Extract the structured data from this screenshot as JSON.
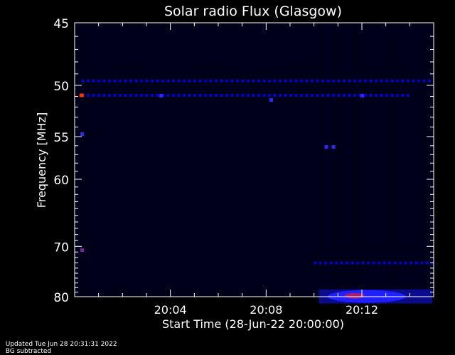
{
  "chart_data": {
    "type": "heatmap",
    "title": "Solar radio Flux (Glasgow)",
    "xlabel": "Start Time (28-Jun-22 20:00:00)",
    "ylabel": "Frequency [MHz]",
    "y_ticks": [
      45,
      50,
      55,
      60,
      70,
      80
    ],
    "ylim": [
      45,
      80
    ],
    "y_scale": "reciprocal",
    "x_ticks": [
      "20:04",
      "20:08",
      "20:12"
    ],
    "xlim_minutes": [
      0,
      15
    ],
    "x_tick_minutes": [
      4,
      8,
      12
    ],
    "colors": {
      "background": "#000000",
      "low": "#000033",
      "mid": "#0000ff",
      "high": "#ff3300"
    },
    "features": [
      {
        "name": "persistent-band",
        "freq_mhz": 49.6,
        "t_start": 0.3,
        "t_end": 15,
        "intensity": "mid",
        "dashed": true
      },
      {
        "name": "persistent-band",
        "freq_mhz": 50.9,
        "t_start": 0.3,
        "t_end": 14,
        "intensity": "mid",
        "dashed": true
      },
      {
        "name": "burst-start",
        "freq_mhz": 50.9,
        "t_start": 0.2,
        "t_end": 0.35,
        "intensity": "high"
      },
      {
        "name": "band-73",
        "freq_mhz": 73,
        "t_start": 10,
        "t_end": 15,
        "intensity": "mid",
        "dashed": true
      },
      {
        "name": "emission-79",
        "freq_mhz": 79,
        "t_start": 10.2,
        "t_end": 15,
        "intensity": "high"
      }
    ]
  },
  "footer": {
    "updated": "Updated Tue Jun 28 20:31:31 2022",
    "bg": "BG subtracted"
  }
}
